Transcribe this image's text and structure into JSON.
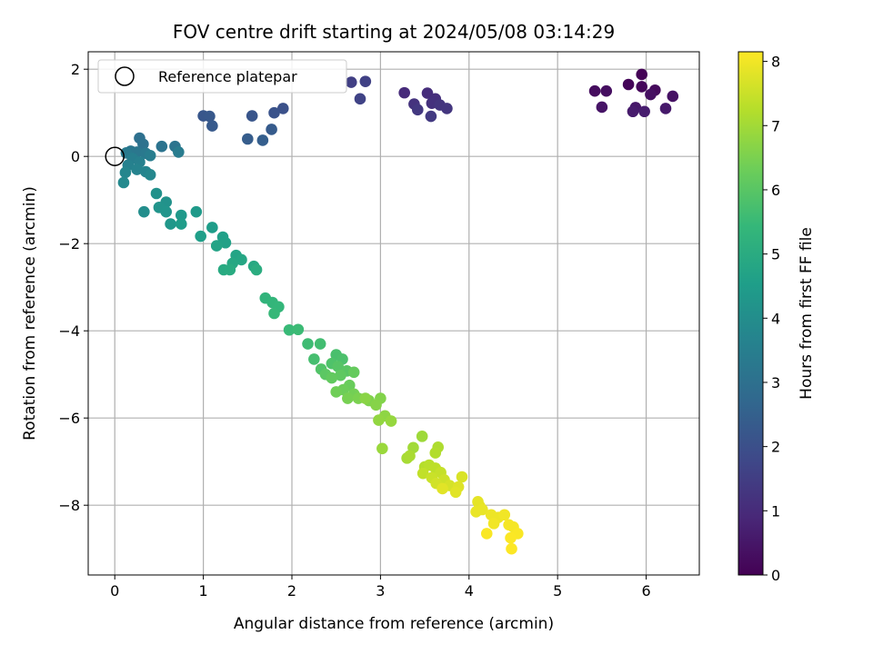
{
  "chart_data": {
    "type": "scatter",
    "title": "FOV centre drift starting at 2024/05/08 03:14:29",
    "xlabel": "Angular distance from reference (arcmin)",
    "ylabel": "Rotation from reference (arcmin)",
    "xlim": [
      -0.3,
      6.6
    ],
    "ylim": [
      -9.6,
      2.4
    ],
    "xticks": [
      0,
      1,
      2,
      3,
      4,
      5,
      6
    ],
    "yticks": [
      -8,
      -6,
      -4,
      -2,
      0,
      2
    ],
    "grid": true,
    "legend": {
      "placement": "top-left",
      "entries": [
        "Reference platepar"
      ]
    },
    "reference_point": {
      "x": 0,
      "y": 0
    },
    "colorbar": {
      "label": "Hours from first FF file",
      "colormap": "viridis",
      "range": [
        0,
        8.15
      ],
      "ticks": [
        0,
        1,
        2,
        3,
        4,
        5,
        6,
        7,
        8
      ]
    },
    "colormap_stops": [
      "#440154",
      "#482878",
      "#3e4989",
      "#31688e",
      "#26828e",
      "#1f9e89",
      "#35b779",
      "#6ece58",
      "#b5de2b",
      "#fde725"
    ],
    "points": [
      {
        "x": 5.95,
        "y": 1.88,
        "h": 0.05
      },
      {
        "x": 5.8,
        "y": 1.65,
        "h": 0.1
      },
      {
        "x": 5.95,
        "y": 1.6,
        "h": 0.15
      },
      {
        "x": 6.1,
        "y": 1.52,
        "h": 0.2
      },
      {
        "x": 5.42,
        "y": 1.5,
        "h": 0.25
      },
      {
        "x": 5.55,
        "y": 1.5,
        "h": 0.3
      },
      {
        "x": 6.05,
        "y": 1.42,
        "h": 0.35
      },
      {
        "x": 6.3,
        "y": 1.38,
        "h": 0.4
      },
      {
        "x": 5.5,
        "y": 1.13,
        "h": 0.45
      },
      {
        "x": 5.88,
        "y": 1.12,
        "h": 0.5
      },
      {
        "x": 6.22,
        "y": 1.1,
        "h": 0.55
      },
      {
        "x": 5.85,
        "y": 1.03,
        "h": 0.6
      },
      {
        "x": 5.98,
        "y": 1.03,
        "h": 0.65
      },
      {
        "x": 3.27,
        "y": 1.46,
        "h": 1.0
      },
      {
        "x": 3.53,
        "y": 1.45,
        "h": 1.05
      },
      {
        "x": 3.62,
        "y": 1.32,
        "h": 1.1
      },
      {
        "x": 3.58,
        "y": 1.22,
        "h": 1.15
      },
      {
        "x": 3.38,
        "y": 1.2,
        "h": 1.2
      },
      {
        "x": 3.67,
        "y": 1.18,
        "h": 1.25
      },
      {
        "x": 3.75,
        "y": 1.1,
        "h": 1.3
      },
      {
        "x": 3.42,
        "y": 1.07,
        "h": 1.35
      },
      {
        "x": 3.57,
        "y": 0.92,
        "h": 1.4
      },
      {
        "x": 2.67,
        "y": 1.7,
        "h": 1.55
      },
      {
        "x": 2.83,
        "y": 1.72,
        "h": 1.6
      },
      {
        "x": 2.77,
        "y": 1.32,
        "h": 1.65
      },
      {
        "x": 1.9,
        "y": 1.1,
        "h": 2.05
      },
      {
        "x": 1.8,
        "y": 1.0,
        "h": 2.1
      },
      {
        "x": 1.55,
        "y": 0.93,
        "h": 2.15
      },
      {
        "x": 1.0,
        "y": 0.93,
        "h": 2.2
      },
      {
        "x": 1.07,
        "y": 0.92,
        "h": 2.25
      },
      {
        "x": 1.1,
        "y": 0.7,
        "h": 2.3
      },
      {
        "x": 1.77,
        "y": 0.62,
        "h": 2.35
      },
      {
        "x": 1.5,
        "y": 0.4,
        "h": 2.4
      },
      {
        "x": 1.67,
        "y": 0.37,
        "h": 2.45
      },
      {
        "x": 0.28,
        "y": 0.42,
        "h": 3.0
      },
      {
        "x": 0.32,
        "y": 0.28,
        "h": 3.05
      },
      {
        "x": 0.53,
        "y": 0.23,
        "h": 3.1
      },
      {
        "x": 0.68,
        "y": 0.23,
        "h": 3.15
      },
      {
        "x": 0.18,
        "y": 0.12,
        "h": 3.2
      },
      {
        "x": 0.25,
        "y": 0.1,
        "h": 3.25
      },
      {
        "x": 0.35,
        "y": 0.07,
        "h": 3.3
      },
      {
        "x": 0.13,
        "y": 0.08,
        "h": 3.35
      },
      {
        "x": 0.72,
        "y": 0.1,
        "h": 3.4
      },
      {
        "x": 0.4,
        "y": 0.02,
        "h": 3.45
      },
      {
        "x": 0.2,
        "y": -0.05,
        "h": 3.5
      },
      {
        "x": 0.28,
        "y": -0.13,
        "h": 3.55
      },
      {
        "x": 0.15,
        "y": -0.2,
        "h": 3.6
      },
      {
        "x": 0.25,
        "y": -0.3,
        "h": 3.65
      },
      {
        "x": 0.35,
        "y": -0.35,
        "h": 3.7
      },
      {
        "x": 0.12,
        "y": -0.37,
        "h": 3.75
      },
      {
        "x": 0.4,
        "y": -0.42,
        "h": 3.8
      },
      {
        "x": 0.1,
        "y": -0.6,
        "h": 3.85
      },
      {
        "x": 0.33,
        "y": -1.27,
        "h": 4.0
      },
      {
        "x": 0.47,
        "y": -0.85,
        "h": 4.1
      },
      {
        "x": 0.58,
        "y": -1.05,
        "h": 4.15
      },
      {
        "x": 0.5,
        "y": -1.17,
        "h": 4.2
      },
      {
        "x": 0.58,
        "y": -1.27,
        "h": 4.25
      },
      {
        "x": 0.63,
        "y": -1.55,
        "h": 4.3
      },
      {
        "x": 0.75,
        "y": -1.35,
        "h": 4.35
      },
      {
        "x": 0.92,
        "y": -1.27,
        "h": 4.4
      },
      {
        "x": 0.75,
        "y": -1.55,
        "h": 4.45
      },
      {
        "x": 1.1,
        "y": -1.63,
        "h": 4.5
      },
      {
        "x": 0.97,
        "y": -1.83,
        "h": 4.55
      },
      {
        "x": 1.22,
        "y": -1.85,
        "h": 4.6
      },
      {
        "x": 1.25,
        "y": -1.98,
        "h": 4.65
      },
      {
        "x": 1.15,
        "y": -2.05,
        "h": 4.7
      },
      {
        "x": 1.37,
        "y": -2.27,
        "h": 4.75
      },
      {
        "x": 1.43,
        "y": -2.37,
        "h": 4.8
      },
      {
        "x": 1.33,
        "y": -2.45,
        "h": 4.85
      },
      {
        "x": 1.57,
        "y": -2.52,
        "h": 4.9
      },
      {
        "x": 1.23,
        "y": -2.6,
        "h": 4.95
      },
      {
        "x": 1.3,
        "y": -2.6,
        "h": 5.0
      },
      {
        "x": 1.6,
        "y": -2.6,
        "h": 5.05
      },
      {
        "x": 1.7,
        "y": -3.25,
        "h": 5.3
      },
      {
        "x": 1.78,
        "y": -3.35,
        "h": 5.35
      },
      {
        "x": 1.85,
        "y": -3.45,
        "h": 5.4
      },
      {
        "x": 1.8,
        "y": -3.6,
        "h": 5.45
      },
      {
        "x": 1.97,
        "y": -3.98,
        "h": 5.5
      },
      {
        "x": 2.07,
        "y": -3.97,
        "h": 5.55
      },
      {
        "x": 2.18,
        "y": -4.3,
        "h": 5.6
      },
      {
        "x": 2.32,
        "y": -4.3,
        "h": 5.65
      },
      {
        "x": 2.25,
        "y": -4.65,
        "h": 5.7
      },
      {
        "x": 2.5,
        "y": -4.55,
        "h": 5.75
      },
      {
        "x": 2.57,
        "y": -4.65,
        "h": 5.8
      },
      {
        "x": 2.45,
        "y": -4.75,
        "h": 5.85
      },
      {
        "x": 2.33,
        "y": -4.88,
        "h": 5.9
      },
      {
        "x": 2.52,
        "y": -4.82,
        "h": 5.95
      },
      {
        "x": 2.62,
        "y": -4.92,
        "h": 6.0
      },
      {
        "x": 2.38,
        "y": -5.0,
        "h": 6.05
      },
      {
        "x": 2.55,
        "y": -5.02,
        "h": 6.1
      },
      {
        "x": 2.45,
        "y": -5.08,
        "h": 6.15
      },
      {
        "x": 2.7,
        "y": -4.95,
        "h": 6.2
      },
      {
        "x": 2.65,
        "y": -5.25,
        "h": 6.25
      },
      {
        "x": 2.58,
        "y": -5.35,
        "h": 6.3
      },
      {
        "x": 2.5,
        "y": -5.4,
        "h": 6.35
      },
      {
        "x": 2.7,
        "y": -5.45,
        "h": 6.4
      },
      {
        "x": 2.63,
        "y": -5.55,
        "h": 6.45
      },
      {
        "x": 2.75,
        "y": -5.55,
        "h": 6.5
      },
      {
        "x": 2.87,
        "y": -5.6,
        "h": 6.55
      },
      {
        "x": 3.0,
        "y": -5.55,
        "h": 6.6
      },
      {
        "x": 2.95,
        "y": -5.7,
        "h": 6.65
      },
      {
        "x": 2.83,
        "y": -5.55,
        "h": 6.7
      },
      {
        "x": 3.05,
        "y": -5.95,
        "h": 6.75
      },
      {
        "x": 2.98,
        "y": -6.05,
        "h": 6.8
      },
      {
        "x": 3.12,
        "y": -6.07,
        "h": 6.85
      },
      {
        "x": 3.02,
        "y": -6.7,
        "h": 6.9
      },
      {
        "x": 3.47,
        "y": -6.42,
        "h": 6.95
      },
      {
        "x": 3.37,
        "y": -6.68,
        "h": 7.0
      },
      {
        "x": 3.3,
        "y": -6.92,
        "h": 7.05
      },
      {
        "x": 3.33,
        "y": -6.87,
        "h": 7.1
      },
      {
        "x": 3.65,
        "y": -6.67,
        "h": 7.15
      },
      {
        "x": 3.62,
        "y": -6.8,
        "h": 7.2
      },
      {
        "x": 3.5,
        "y": -7.12,
        "h": 7.25
      },
      {
        "x": 3.55,
        "y": -7.08,
        "h": 7.3
      },
      {
        "x": 3.62,
        "y": -7.15,
        "h": 7.35
      },
      {
        "x": 3.48,
        "y": -7.27,
        "h": 7.4
      },
      {
        "x": 3.68,
        "y": -7.25,
        "h": 7.45
      },
      {
        "x": 3.58,
        "y": -7.37,
        "h": 7.5
      },
      {
        "x": 3.72,
        "y": -7.42,
        "h": 7.55
      },
      {
        "x": 3.63,
        "y": -7.5,
        "h": 7.6
      },
      {
        "x": 3.78,
        "y": -7.55,
        "h": 7.65
      },
      {
        "x": 3.92,
        "y": -7.35,
        "h": 7.7
      },
      {
        "x": 3.88,
        "y": -7.58,
        "h": 7.75
      },
      {
        "x": 3.7,
        "y": -7.62,
        "h": 7.8
      },
      {
        "x": 3.85,
        "y": -7.7,
        "h": 7.8
      },
      {
        "x": 4.1,
        "y": -7.92,
        "h": 7.85
      },
      {
        "x": 4.12,
        "y": -8.02,
        "h": 7.85
      },
      {
        "x": 4.08,
        "y": -8.15,
        "h": 7.9
      },
      {
        "x": 4.15,
        "y": -8.1,
        "h": 7.9
      },
      {
        "x": 4.25,
        "y": -8.22,
        "h": 7.95
      },
      {
        "x": 4.33,
        "y": -8.28,
        "h": 7.95
      },
      {
        "x": 4.28,
        "y": -8.42,
        "h": 8.0
      },
      {
        "x": 4.4,
        "y": -8.22,
        "h": 8.0
      },
      {
        "x": 4.45,
        "y": -8.45,
        "h": 8.05
      },
      {
        "x": 4.5,
        "y": -8.5,
        "h": 8.05
      },
      {
        "x": 4.2,
        "y": -8.65,
        "h": 8.1
      },
      {
        "x": 4.55,
        "y": -8.65,
        "h": 8.1
      },
      {
        "x": 4.47,
        "y": -8.75,
        "h": 8.12
      },
      {
        "x": 4.48,
        "y": -9.0,
        "h": 8.14
      }
    ]
  }
}
